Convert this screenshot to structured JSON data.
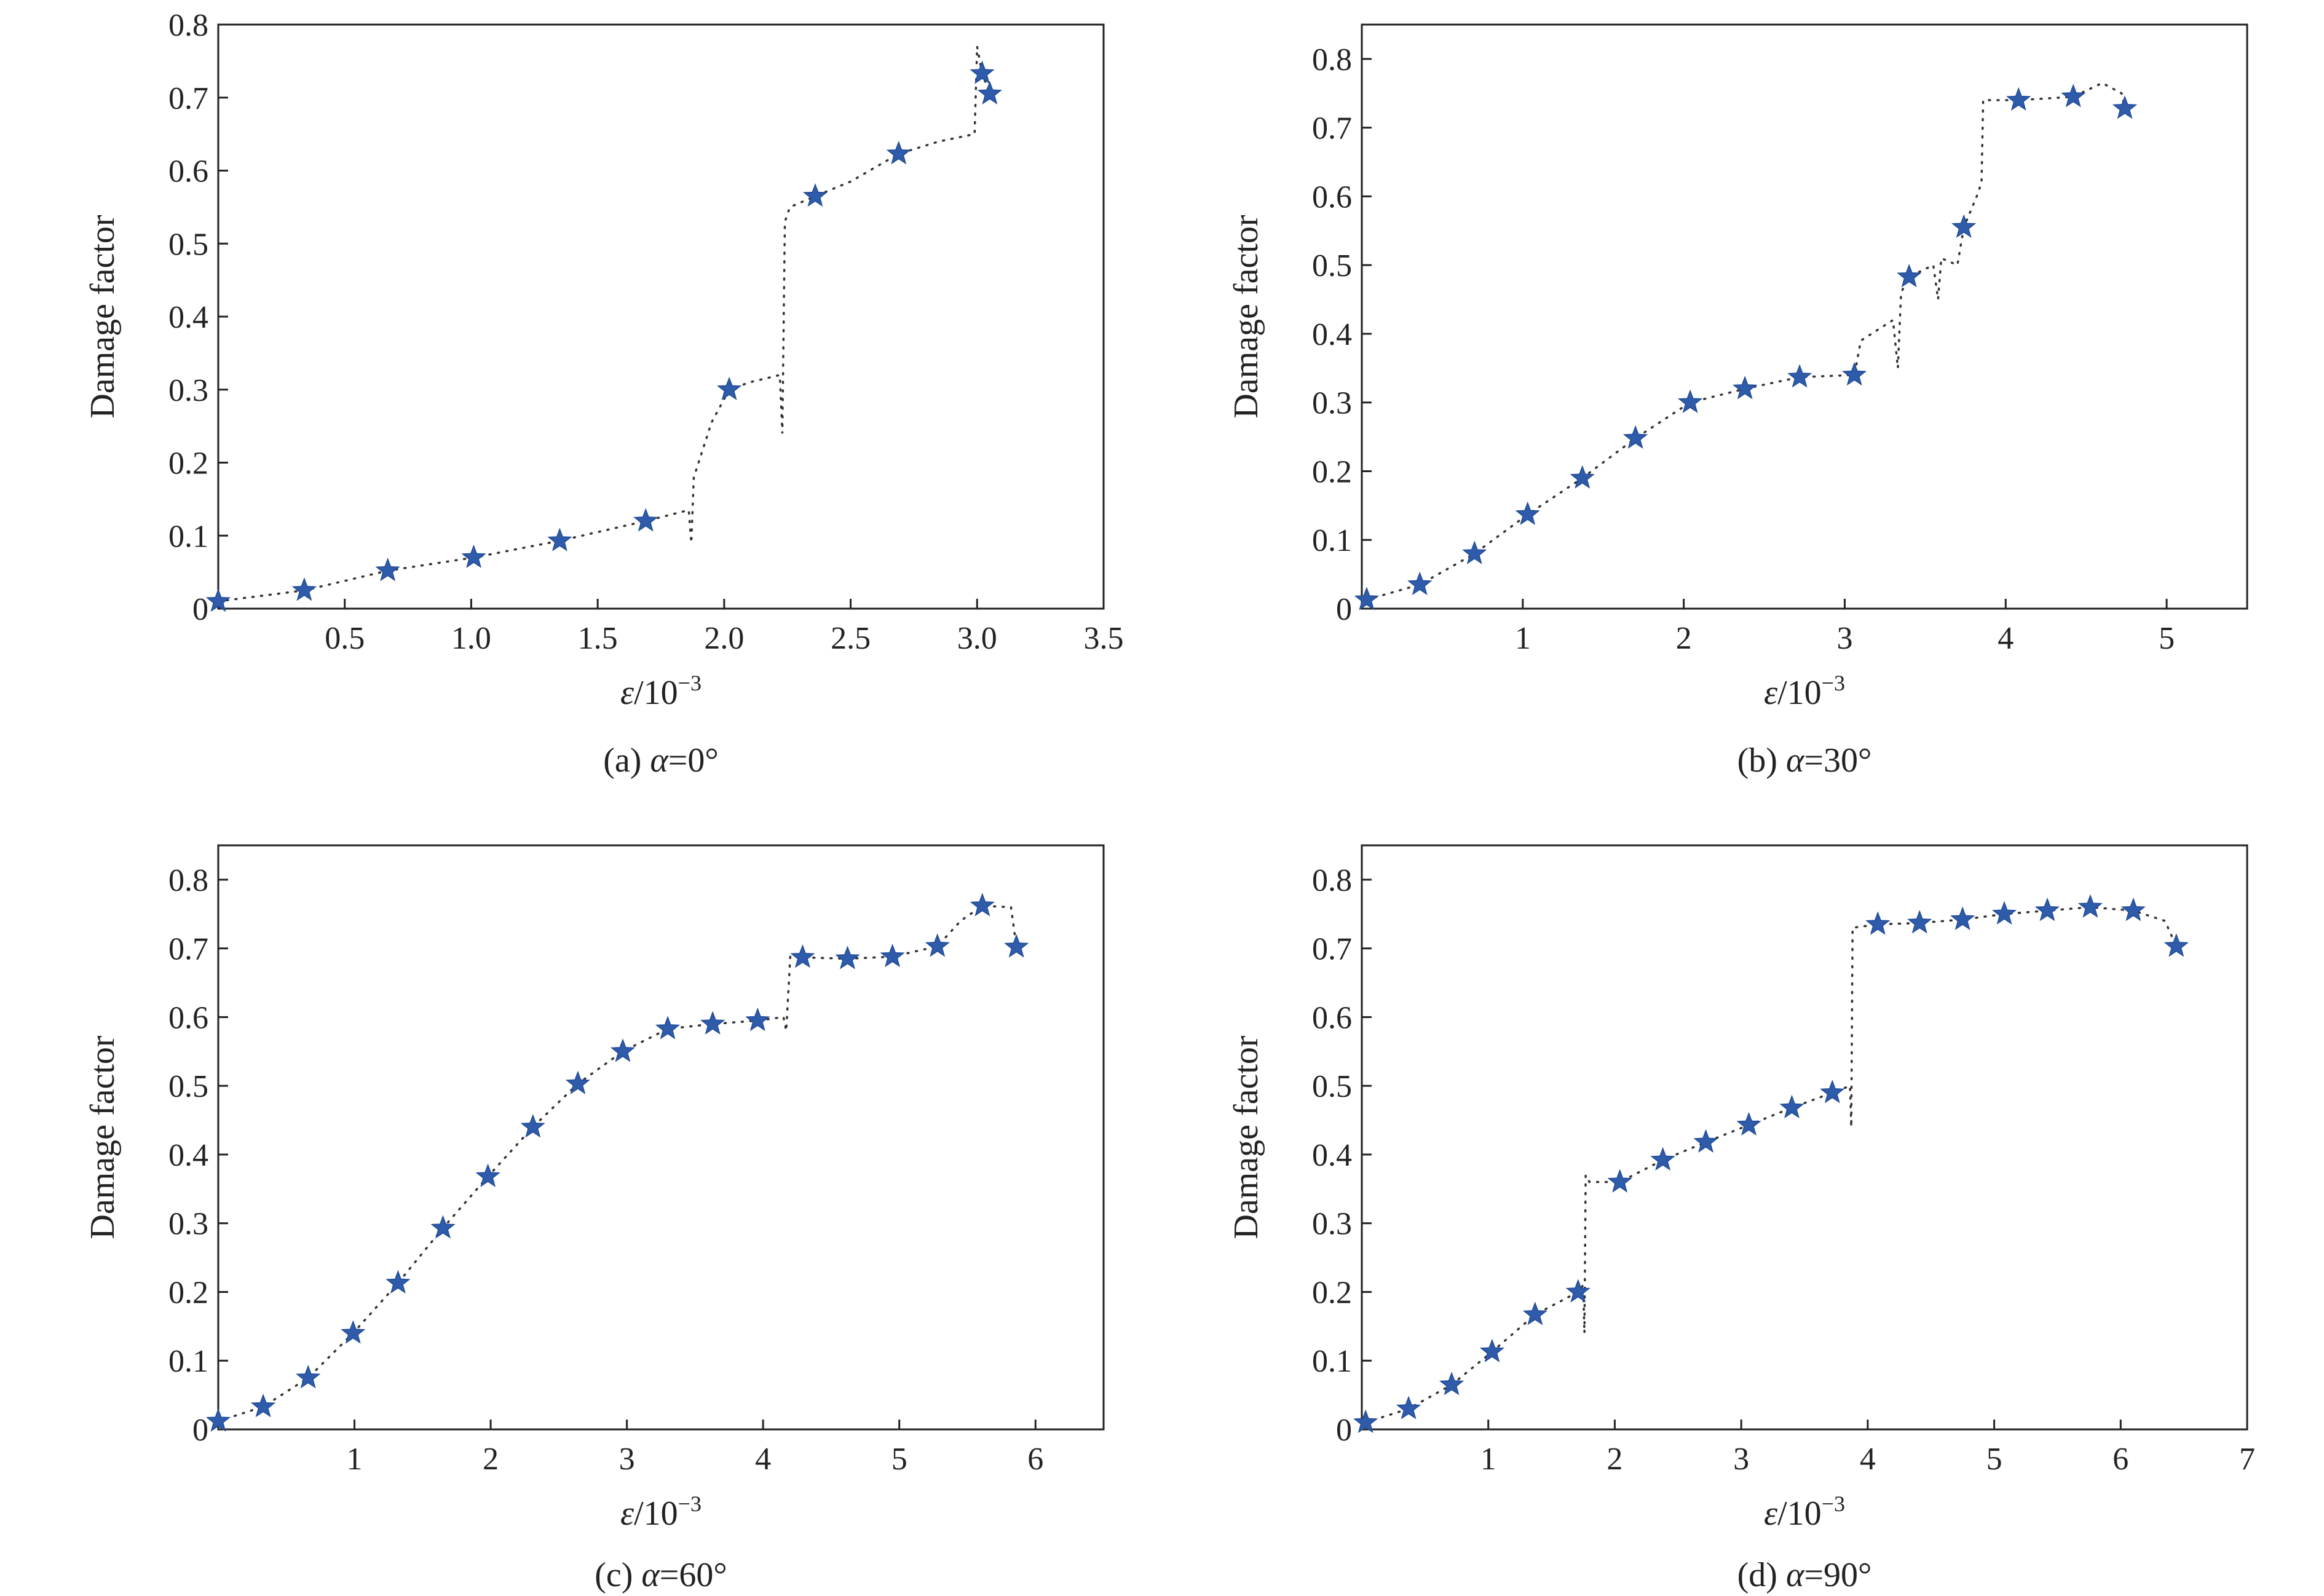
{
  "figure": {
    "star_color": "#2f5bab",
    "line_color": "#333333"
  },
  "chart_data": [
    {
      "type": "line",
      "caption_prefix": "(a) ",
      "caption_var": "α",
      "caption_value": "=0°",
      "xlabel_var": "ε",
      "xlabel_unit": "/10",
      "xlabel_exp": "−3",
      "ylabel": "Damage factor",
      "xlim": [
        0,
        3.5
      ],
      "ylim": [
        0,
        0.8
      ],
      "xticks": [
        0.5,
        1.0,
        1.5,
        2.0,
        2.5,
        3.0,
        3.5
      ],
      "xtick_labels": [
        "0.5",
        "1.0",
        "1.5",
        "2.0",
        "2.5",
        "3.0",
        "3.5"
      ],
      "yticks": [
        0,
        0.1,
        0.2,
        0.3,
        0.4,
        0.5,
        0.6,
        0.7,
        0.8
      ],
      "ytick_labels": [
        "0",
        "0.1",
        "0.2",
        "0.3",
        "0.4",
        "0.5",
        "0.6",
        "0.7",
        "0.8"
      ],
      "series": [
        {
          "name": "stars",
          "x": [
            0.0,
            0.34,
            0.67,
            1.01,
            1.35,
            1.69,
            2.02,
            2.36,
            2.69,
            3.02,
            3.05
          ],
          "y": [
            0.01,
            0.025,
            0.052,
            0.07,
            0.093,
            0.12,
            0.3,
            0.565,
            0.623,
            0.733,
            0.705
          ]
        },
        {
          "name": "curve",
          "x": [
            0.0,
            0.34,
            0.67,
            1.01,
            1.35,
            1.69,
            1.86,
            1.87,
            1.88,
            1.95,
            2.02,
            2.1,
            2.22,
            2.23,
            2.24,
            2.26,
            2.36,
            2.5,
            2.69,
            2.85,
            2.99,
            3.0,
            3.02,
            3.05
          ],
          "y": [
            0.01,
            0.025,
            0.052,
            0.07,
            0.093,
            0.12,
            0.135,
            0.09,
            0.18,
            0.255,
            0.3,
            0.31,
            0.32,
            0.24,
            0.53,
            0.55,
            0.565,
            0.585,
            0.623,
            0.64,
            0.65,
            0.77,
            0.733,
            0.705
          ]
        }
      ]
    },
    {
      "type": "line",
      "caption_prefix": "(b) ",
      "caption_var": "α",
      "caption_value": "=30°",
      "xlabel_var": "ε",
      "xlabel_unit": "/10",
      "xlabel_exp": "−3",
      "ylabel": "Damage factor",
      "xlim": [
        0,
        5.5
      ],
      "ylim": [
        0,
        0.85
      ],
      "xticks": [
        1,
        2,
        3,
        4,
        5
      ],
      "xtick_labels": [
        "1",
        "2",
        "3",
        "4",
        "5"
      ],
      "yticks": [
        0,
        0.1,
        0.2,
        0.3,
        0.4,
        0.5,
        0.6,
        0.7,
        0.8
      ],
      "ytick_labels": [
        "0",
        "0.1",
        "0.2",
        "0.3",
        "0.4",
        "0.5",
        "0.6",
        "0.7",
        "0.8"
      ],
      "series": [
        {
          "name": "stars",
          "x": [
            0.03,
            0.36,
            0.7,
            1.03,
            1.37,
            1.7,
            2.04,
            2.38,
            2.72,
            3.06,
            3.4,
            3.74,
            4.08,
            4.42,
            4.74
          ],
          "y": [
            0.013,
            0.035,
            0.08,
            0.137,
            0.19,
            0.248,
            0.3,
            0.32,
            0.337,
            0.34,
            0.483,
            0.555,
            0.74,
            0.745,
            0.728
          ]
        },
        {
          "name": "curve",
          "x": [
            0.03,
            0.36,
            0.7,
            1.03,
            1.37,
            1.7,
            2.04,
            2.38,
            2.72,
            3.06,
            3.1,
            3.3,
            3.33,
            3.35,
            3.4,
            3.55,
            3.58,
            3.6,
            3.7,
            3.74,
            3.82,
            3.85,
            3.86,
            4.08,
            4.42,
            4.6,
            4.72,
            4.74
          ],
          "y": [
            0.013,
            0.035,
            0.08,
            0.137,
            0.19,
            0.248,
            0.3,
            0.32,
            0.337,
            0.34,
            0.39,
            0.42,
            0.35,
            0.46,
            0.483,
            0.5,
            0.45,
            0.51,
            0.5,
            0.555,
            0.6,
            0.62,
            0.74,
            0.74,
            0.745,
            0.765,
            0.75,
            0.728
          ]
        }
      ]
    },
    {
      "type": "line",
      "caption_prefix": "(c) ",
      "caption_var": "α",
      "caption_value": "=60°",
      "xlabel_var": "ε",
      "xlabel_unit": "/10",
      "xlabel_exp": "−3",
      "ylabel": "Damage factor",
      "xlim": [
        0,
        6.5
      ],
      "ylim": [
        0,
        0.85
      ],
      "xticks": [
        1,
        2,
        3,
        4,
        5,
        6
      ],
      "xtick_labels": [
        "1",
        "2",
        "3",
        "4",
        "5",
        "6"
      ],
      "yticks": [
        0,
        0.1,
        0.2,
        0.3,
        0.4,
        0.5,
        0.6,
        0.7,
        0.8
      ],
      "ytick_labels": [
        "0",
        "0.1",
        "0.2",
        "0.3",
        "0.4",
        "0.5",
        "0.6",
        "0.7",
        "0.8"
      ],
      "series": [
        {
          "name": "stars",
          "x": [
            0.0,
            0.33,
            0.66,
            0.99,
            1.32,
            1.65,
            1.98,
            2.31,
            2.64,
            2.97,
            3.3,
            3.63,
            3.96,
            4.29,
            4.62,
            4.95,
            5.28,
            5.61,
            5.86
          ],
          "y": [
            0.012,
            0.033,
            0.075,
            0.14,
            0.213,
            0.293,
            0.368,
            0.44,
            0.503,
            0.55,
            0.583,
            0.59,
            0.595,
            0.687,
            0.685,
            0.688,
            0.703,
            0.762,
            0.702
          ]
        },
        {
          "name": "curve",
          "x": [
            0.0,
            0.33,
            0.66,
            0.99,
            1.32,
            1.65,
            1.98,
            2.31,
            2.64,
            2.97,
            3.3,
            3.63,
            3.96,
            4.15,
            4.17,
            4.2,
            4.29,
            4.62,
            4.95,
            5.28,
            5.45,
            5.61,
            5.82,
            5.86
          ],
          "y": [
            0.012,
            0.033,
            0.075,
            0.14,
            0.213,
            0.293,
            0.368,
            0.44,
            0.503,
            0.55,
            0.583,
            0.59,
            0.595,
            0.6,
            0.58,
            0.69,
            0.687,
            0.685,
            0.688,
            0.703,
            0.74,
            0.762,
            0.76,
            0.702
          ]
        }
      ]
    },
    {
      "type": "line",
      "caption_prefix": "(d) ",
      "caption_var": "α",
      "caption_value": "=90°",
      "xlabel_var": "ε",
      "xlabel_unit": "/10",
      "xlabel_exp": "−3",
      "ylabel": "Damage factor",
      "xlim": [
        0,
        7
      ],
      "ylim": [
        0,
        0.85
      ],
      "xticks": [
        1,
        2,
        3,
        4,
        5,
        6,
        7
      ],
      "xtick_labels": [
        "1",
        "2",
        "3",
        "4",
        "5",
        "6",
        "7"
      ],
      "yticks": [
        0,
        0.1,
        0.2,
        0.3,
        0.4,
        0.5,
        0.6,
        0.7,
        0.8
      ],
      "ytick_labels": [
        "0",
        "0.1",
        "0.2",
        "0.3",
        "0.4",
        "0.5",
        "0.6",
        "0.7",
        "0.8"
      ],
      "series": [
        {
          "name": "stars",
          "x": [
            0.03,
            0.37,
            0.71,
            1.03,
            1.37,
            1.71,
            2.04,
            2.38,
            2.72,
            3.06,
            3.4,
            3.72,
            4.08,
            4.41,
            4.75,
            5.08,
            5.42,
            5.76,
            6.1,
            6.44
          ],
          "y": [
            0.01,
            0.03,
            0.065,
            0.113,
            0.167,
            0.2,
            0.36,
            0.392,
            0.418,
            0.443,
            0.468,
            0.49,
            0.735,
            0.737,
            0.742,
            0.75,
            0.755,
            0.76,
            0.755,
            0.703
          ]
        },
        {
          "name": "curve",
          "x": [
            0.03,
            0.37,
            0.71,
            1.03,
            1.37,
            1.71,
            1.75,
            1.76,
            1.77,
            1.8,
            2.04,
            2.38,
            2.72,
            3.06,
            3.4,
            3.72,
            3.86,
            3.87,
            3.88,
            4.08,
            4.41,
            4.75,
            5.08,
            5.42,
            5.76,
            6.1,
            6.35,
            6.44
          ],
          "y": [
            0.01,
            0.03,
            0.065,
            0.113,
            0.167,
            0.2,
            0.21,
            0.14,
            0.37,
            0.36,
            0.36,
            0.392,
            0.418,
            0.443,
            0.468,
            0.49,
            0.5,
            0.44,
            0.73,
            0.735,
            0.737,
            0.742,
            0.75,
            0.755,
            0.76,
            0.755,
            0.74,
            0.703
          ]
        }
      ]
    }
  ]
}
